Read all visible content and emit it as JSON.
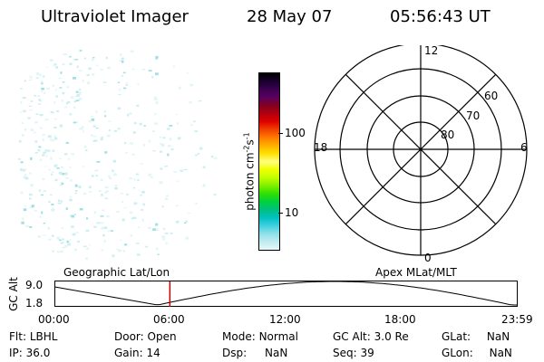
{
  "header": {
    "instrument": "Ultraviolet Imager",
    "date": "28 May 07",
    "time": "05:56:43 UT"
  },
  "colorbar": {
    "label": "photon cm^-2 s^-1",
    "label_main": "photon cm",
    "sup1": "-2",
    "mid": "s",
    "sup2": "-1",
    "ticks": [
      "100",
      "10"
    ],
    "colors": [
      "#000000",
      "#1a0030",
      "#3a0050",
      "#5a0060",
      "#800020",
      "#b00010",
      "#e00000",
      "#f04000",
      "#ff7a00",
      "#ffb000",
      "#ffe000",
      "#ffff80",
      "#f0ff00",
      "#c0ff00",
      "#80f000",
      "#30e000",
      "#00d040",
      "#00c080",
      "#00c0c0",
      "#40d0e0",
      "#90e0e8",
      "#c0ecf0",
      "#e8f6f8"
    ]
  },
  "polar_plot": {
    "mlt_labels": {
      "top": "12",
      "left": "18",
      "right": "6",
      "bottom": "0"
    },
    "lat_labels": [
      "60",
      "70",
      "80"
    ]
  },
  "timeline": {
    "left_label": "Geographic Lat/Lon",
    "right_label": "Apex MLat/MLT",
    "axis_title": "GC Alt",
    "y_top": "9.0",
    "y_bottom": "1.8",
    "x_ticks": [
      "00:00",
      "06:00",
      "12:00",
      "18:00",
      "23:59"
    ],
    "marker_time": "05:56:43",
    "marker_color": "#cc0000"
  },
  "info": {
    "flt_label": "Flt:",
    "flt_value": "LBHL",
    "ip_label": "IP:",
    "ip_value": "36.0",
    "door_label": "Door:",
    "door_value": "Open",
    "gain_label": "Gain:",
    "gain_value": "14",
    "mode_label": "Mode:",
    "mode_value": "Normal",
    "dsp_label": "Dsp:",
    "dsp_value": "NaN",
    "gcalt_label": "GC Alt:",
    "gcalt_value": "3.0 Re",
    "seq_label": "Seq:",
    "seq_value": "39",
    "glat_label": "GLat:",
    "glat_value": "NaN",
    "glon_label": "GLon:",
    "glon_value": "NaN"
  }
}
